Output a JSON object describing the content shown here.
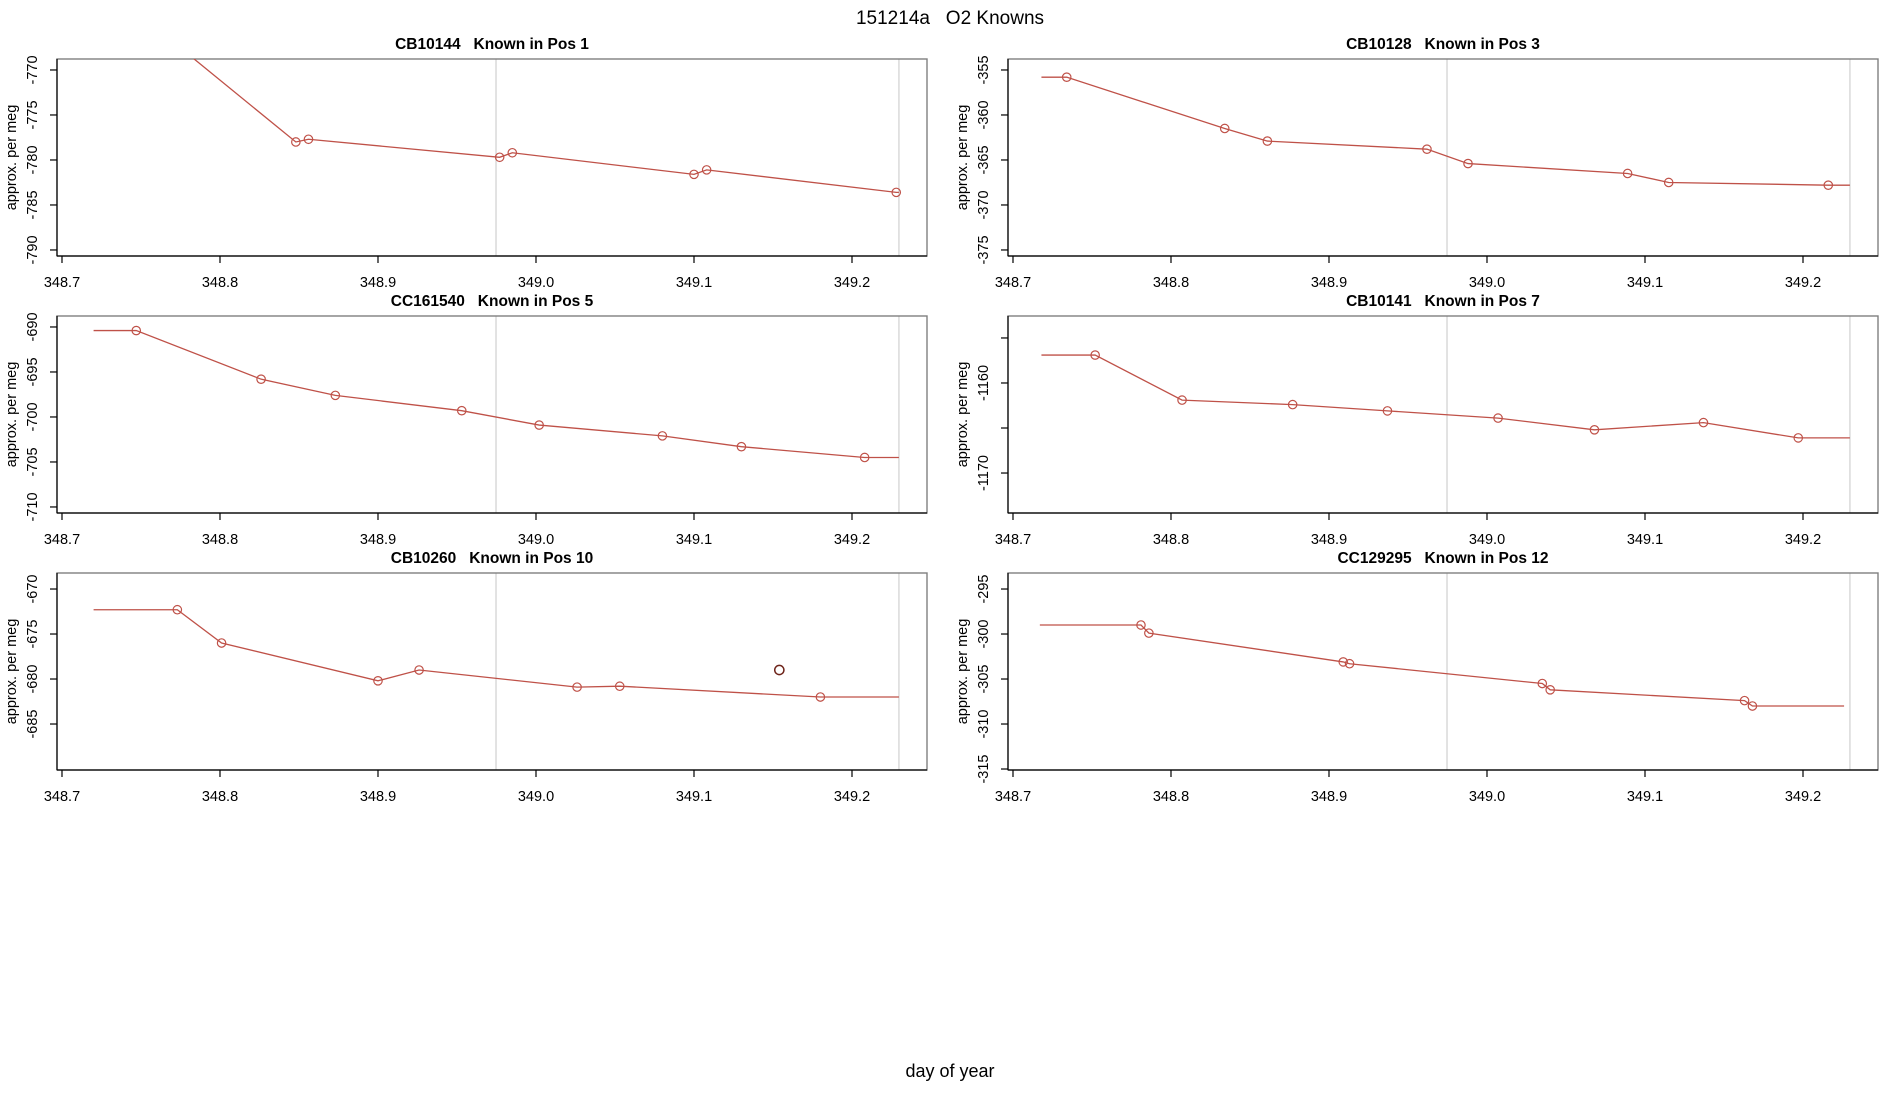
{
  "main_title": "151214a   O2 Knowns",
  "xlabel": "day of year",
  "colors": {
    "line": "#bf5148",
    "marker": "#bf5148",
    "outlier_point": "#6e241a",
    "ref_line": "#d9d9d9",
    "box": "#7f7f7f",
    "axis": "#000000",
    "text": "#000000"
  },
  "x_axis": {
    "ticks": [
      348.7,
      348.8,
      348.9,
      349.0,
      349.1,
      349.2
    ],
    "labels": [
      "348.7",
      "348.8",
      "348.9",
      "349.0",
      "349.1",
      "349.2"
    ]
  },
  "ref_lines": [
    348.9747,
    349.2297
  ],
  "chart_data": [
    {
      "type": "line",
      "sample_id": "CB10144",
      "position_label": "Known in Pos 1",
      "title": "CB10144   Known in Pos 1",
      "ylabel": "approx. per meg",
      "xlim": [
        348.69684,
        349.24747
      ],
      "ylim": [
        -768.78,
        -790.67
      ],
      "yticks": {
        "values": [
          -770,
          -775,
          -780,
          -785,
          -790
        ],
        "labels": [
          "-770",
          "-775",
          "-780",
          "-785",
          "-790"
        ]
      },
      "line_path": [
        [
          348.72,
          -762.1
        ],
        [
          348.737,
          -762.1
        ],
        [
          348.848,
          -778.0
        ],
        [
          348.856,
          -777.7
        ],
        [
          348.977,
          -779.7
        ],
        [
          348.985,
          -779.2
        ],
        [
          349.1,
          -781.6
        ],
        [
          349.108,
          -781.1
        ],
        [
          349.228,
          -783.6
        ],
        [
          349.2297,
          -783.6
        ]
      ],
      "points": [
        [
          348.848,
          -778.0
        ],
        [
          348.856,
          -777.7
        ],
        [
          348.977,
          -779.7
        ],
        [
          348.985,
          -779.2
        ],
        [
          349.1,
          -781.6
        ],
        [
          349.108,
          -781.1
        ],
        [
          349.228,
          -783.6
        ]
      ]
    },
    {
      "type": "line",
      "sample_id": "CB10128",
      "position_label": "Known in Pos 3",
      "title": "CB10128   Known in Pos 3",
      "ylabel": "approx. per meg",
      "xlim": [
        348.69684,
        349.24747
      ],
      "ylim": [
        -353.78,
        -375.67
      ],
      "yticks": {
        "values": [
          -355,
          -360,
          -365,
          -370,
          -375
        ],
        "labels": [
          "-355",
          "-360",
          "-365",
          "-370",
          "-375"
        ]
      },
      "line_path": [
        [
          348.718,
          -355.8
        ],
        [
          348.734,
          -355.8
        ],
        [
          348.834,
          -361.5
        ],
        [
          348.861,
          -362.9
        ],
        [
          348.962,
          -363.8
        ],
        [
          348.988,
          -365.4
        ],
        [
          349.089,
          -366.5
        ],
        [
          349.115,
          -367.5
        ],
        [
          349.216,
          -367.8
        ],
        [
          349.2297,
          -367.8
        ]
      ],
      "points": [
        [
          348.734,
          -355.8
        ],
        [
          348.834,
          -361.5
        ],
        [
          348.861,
          -362.9
        ],
        [
          348.962,
          -363.8
        ],
        [
          348.988,
          -365.4
        ],
        [
          349.089,
          -366.5
        ],
        [
          349.115,
          -367.5
        ],
        [
          349.216,
          -367.8
        ]
      ]
    },
    {
      "type": "line",
      "sample_id": "CC161540",
      "position_label": "Known in Pos 5",
      "title": "CC161540   Known in Pos 5",
      "ylabel": "approx. per meg",
      "xlim": [
        348.69684,
        349.24747
      ],
      "ylim": [
        -688.78,
        -710.67
      ],
      "yticks": {
        "values": [
          -690,
          -695,
          -700,
          -705,
          -710
        ],
        "labels": [
          "-690",
          "-695",
          "-700",
          "-705",
          "-710"
        ]
      },
      "line_path": [
        [
          348.72,
          -690.4
        ],
        [
          348.747,
          -690.4
        ],
        [
          348.826,
          -695.8
        ],
        [
          348.873,
          -697.6
        ],
        [
          348.953,
          -699.3
        ],
        [
          349.002,
          -700.9
        ],
        [
          349.08,
          -702.1
        ],
        [
          349.13,
          -703.3
        ],
        [
          349.208,
          -704.5
        ],
        [
          349.2297,
          -704.5
        ]
      ],
      "points": [
        [
          348.747,
          -690.4
        ],
        [
          348.826,
          -695.8
        ],
        [
          348.873,
          -697.6
        ],
        [
          348.953,
          -699.3
        ],
        [
          349.002,
          -700.9
        ],
        [
          349.08,
          -702.1
        ],
        [
          349.13,
          -703.3
        ],
        [
          349.208,
          -704.5
        ]
      ]
    },
    {
      "type": "line",
      "sample_id": "CB10141",
      "position_label": "Known in Pos 7",
      "title": "CB10141   Known in Pos 7",
      "ylabel": "approx. per meg",
      "xlim": [
        348.69684,
        349.24747
      ],
      "ylim": [
        -1152.56,
        -1174.44
      ],
      "yticks": {
        "values": [
          -1155,
          -1160,
          -1165,
          -1170
        ],
        "labels": [
          "",
          "-1160",
          "",
          "-1170"
        ]
      },
      "line_path": [
        [
          348.718,
          -1156.9
        ],
        [
          348.752,
          -1156.9
        ],
        [
          348.807,
          -1161.9
        ],
        [
          348.877,
          -1162.4
        ],
        [
          348.937,
          -1163.1
        ],
        [
          349.007,
          -1163.9
        ],
        [
          349.068,
          -1165.2
        ],
        [
          349.137,
          -1164.4
        ],
        [
          349.197,
          -1166.1
        ],
        [
          349.2297,
          -1166.1
        ]
      ],
      "points": [
        [
          348.752,
          -1156.9
        ],
        [
          348.807,
          -1161.9
        ],
        [
          348.877,
          -1162.4
        ],
        [
          348.937,
          -1163.1
        ],
        [
          349.007,
          -1163.9
        ],
        [
          349.068,
          -1165.2
        ],
        [
          349.137,
          -1164.4
        ],
        [
          349.197,
          -1166.1
        ]
      ]
    },
    {
      "type": "line",
      "sample_id": "CB10260",
      "position_label": "Known in Pos 10",
      "title": "CB10260   Known in Pos 10",
      "ylabel": "approx. per meg",
      "xlim": [
        348.69684,
        349.24747
      ],
      "ylim": [
        -668.22,
        -690.11
      ],
      "yticks": {
        "values": [
          -670,
          -675,
          -680,
          -685
        ],
        "labels": [
          "-670",
          "-675",
          "-680",
          "-685"
        ]
      },
      "line_path": [
        [
          348.72,
          -672.3
        ],
        [
          348.773,
          -672.3
        ],
        [
          348.801,
          -676.0
        ],
        [
          348.9,
          -680.2
        ],
        [
          348.926,
          -679.0
        ],
        [
          349.026,
          -680.9
        ],
        [
          349.053,
          -680.8
        ],
        [
          349.18,
          -682.0
        ],
        [
          349.2297,
          -682.0
        ]
      ],
      "points": [
        [
          348.773,
          -672.3
        ],
        [
          348.801,
          -676.0
        ],
        [
          348.9,
          -680.2
        ],
        [
          348.926,
          -679.0
        ],
        [
          349.026,
          -680.9
        ],
        [
          349.053,
          -680.8
        ],
        [
          349.18,
          -682.0
        ]
      ],
      "outlier_point": [
        349.154,
        -679.0
      ]
    },
    {
      "type": "line",
      "sample_id": "CC129295",
      "position_label": "Known in Pos 12",
      "title": "CC129295   Known in Pos 12",
      "ylabel": "approx. per meg",
      "xlim": [
        348.69684,
        349.24747
      ],
      "ylim": [
        -293.22,
        -315.11
      ],
      "yticks": {
        "values": [
          -295,
          -300,
          -305,
          -310,
          -315
        ],
        "labels": [
          "-295",
          "-300",
          "-305",
          "-310",
          "-315"
        ]
      },
      "line_path": [
        [
          348.717,
          -299.0
        ],
        [
          348.781,
          -299.0
        ],
        [
          348.786,
          -299.9
        ],
        [
          348.909,
          -303.1
        ],
        [
          348.913,
          -303.3
        ],
        [
          349.035,
          -305.5
        ],
        [
          349.04,
          -306.2
        ],
        [
          349.163,
          -307.4
        ],
        [
          349.168,
          -308.0
        ],
        [
          349.226,
          -308.0
        ]
      ],
      "points": [
        [
          348.781,
          -299.0
        ],
        [
          348.786,
          -299.9
        ],
        [
          348.909,
          -303.1
        ],
        [
          348.913,
          -303.3
        ],
        [
          349.035,
          -305.5
        ],
        [
          349.04,
          -306.2
        ],
        [
          349.163,
          -307.4
        ],
        [
          349.168,
          -308.0
        ]
      ]
    }
  ]
}
